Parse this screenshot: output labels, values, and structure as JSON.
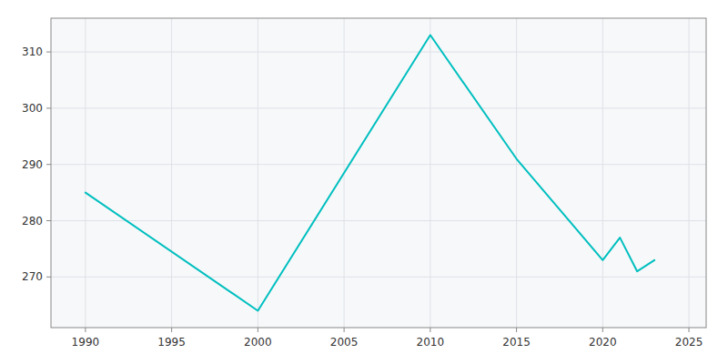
{
  "chart_data": {
    "type": "line",
    "x": [
      1990,
      2000,
      2010,
      2015,
      2020,
      2021,
      2022,
      2023
    ],
    "values": [
      285,
      264,
      313,
      291,
      273,
      277,
      271,
      273
    ],
    "color": "#00BFBF",
    "xlim": [
      1988,
      2026
    ],
    "ylim": [
      261,
      316
    ],
    "xticks": [
      1990,
      1995,
      2000,
      2005,
      2010,
      2015,
      2020,
      2025
    ],
    "yticks": [
      270,
      280,
      290,
      300,
      310
    ],
    "grid": true
  }
}
